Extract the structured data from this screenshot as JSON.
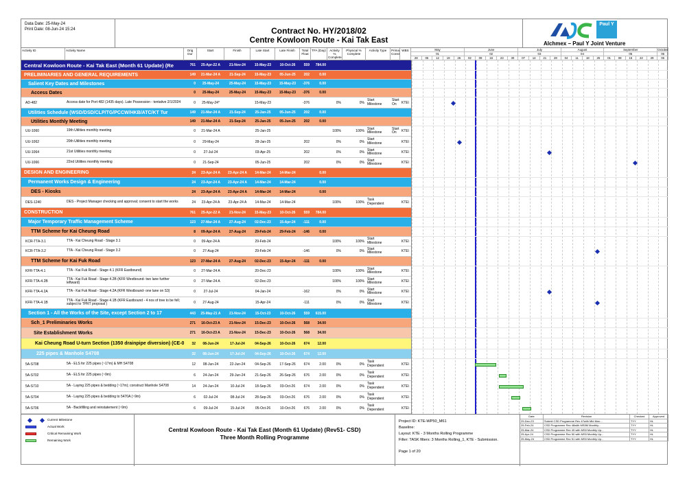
{
  "header": {
    "data_date": "Data Date: 25-May-24",
    "print_date": "Print Date: 08-Jun-24 15:24",
    "contract": "Contract No. HY/2018/02",
    "project": "Centre Kowloon Route - Kai Tak East",
    "logo_left": "AJC",
    "logo_right": "Paul Y",
    "joint_venture": "Alchmex – Paul Y Joint Venture"
  },
  "columns": [
    "Activity ID",
    "Activity Name",
    "Orig Dur",
    "Start",
    "Finish",
    "Late Start",
    "Late Finish",
    "Total Float",
    "TFA (Day)",
    "Activity % Complete",
    "Physical % Complete",
    "Activity Type",
    "Primary Constr",
    "WBS"
  ],
  "timeline": {
    "months": [
      "May",
      "June",
      "July",
      "August",
      "September",
      "October"
    ],
    "month_sub": [
      "01",
      "02",
      "03",
      "04",
      "05",
      "06"
    ],
    "days": [
      "28",
      "05",
      "12",
      "19",
      "26",
      "02",
      "09",
      "16",
      "23",
      "30",
      "07",
      "14",
      "21",
      "28",
      "04",
      "11",
      "18",
      "25",
      "01",
      "08",
      "15",
      "22",
      "29",
      "06"
    ]
  },
  "rows": [
    {
      "kind": "l1",
      "name": "Central Kowloon Route - Kai Tak East (Month 61 Update) (Re",
      "dur": "761",
      "start": "25-Apr-22 A",
      "finish": "21-Nov-24",
      "ls": "15-May-23",
      "lf": "10-Oct-26",
      "tf": "559",
      "tfa": "784.00"
    },
    {
      "kind": "l2",
      "name": "PRELIMINARIES AND GENERAL REQUIREMENTS",
      "dur": "149",
      "start": "21-Mar-24 A",
      "finish": "21-Sep-24",
      "ls": "15-May-23",
      "lf": "05-Jun-25",
      "tf": "202",
      "tfa": "0.00"
    },
    {
      "kind": "l3",
      "name": "Salient Key Dates and Milestones",
      "dur": "0",
      "start": "25-May-24",
      "finish": "25-May-24",
      "ls": "15-May-23",
      "lf": "15-May-23",
      "tf": "-376",
      "tfa": "0.00"
    },
    {
      "kind": "l4",
      "name": "Access Dates",
      "dur": "0",
      "start": "25-May-24",
      "finish": "25-May-24",
      "ls": "15-May-23",
      "lf": "15-May-23",
      "tf": "-376",
      "tfa": "0.00"
    },
    {
      "kind": "act",
      "id": "AD-482",
      "name": "Access date for Port 482 (1435 days). Late Possession - tentative 2/1/2024",
      "dur": "0",
      "start": "25-May-24*",
      "finish": "",
      "ls": "15-May-23",
      "lf": "",
      "tf": "-376",
      "tfa": "",
      "pc": "0%",
      "ph": "0%",
      "type": "Start Milestone",
      "pcon": "Start On",
      "wbs": "KTE\\"
    },
    {
      "kind": "l3",
      "name": "Utilities Schedule (WSD/DSD/CLP/TG/PCCW/HKB/ATC/KT Tur",
      "dur": "149",
      "start": "21-Mar-24 A",
      "finish": "21-Sep-24",
      "ls": "25-Jan-25",
      "lf": "05-Jun-25",
      "tf": "202",
      "tfa": "0.00"
    },
    {
      "kind": "l4",
      "name": "Utilities Monthly Meeting",
      "dur": "149",
      "start": "21-Mar-24 A",
      "finish": "21-Sep-24",
      "ls": "25-Jan-25",
      "lf": "05-Jun-25",
      "tf": "202",
      "tfa": "0.00"
    },
    {
      "kind": "act",
      "id": "UU-1060",
      "name": "19th  Utilities monthly meeting",
      "dur": "0",
      "start": "21-Mar-24 A",
      "finish": "",
      "ls": "25-Jan-25",
      "lf": "",
      "tf": "",
      "tfa": "",
      "pc": "100%",
      "ph": "100%",
      "type": "Start Milestone",
      "pcon": "Start On",
      "wbs": "KTE\\"
    },
    {
      "kind": "act",
      "id": "UU-1062",
      "name": "20th  Utilities monthly meeting",
      "dur": "0",
      "start": "29-May-24",
      "finish": "",
      "ls": "28-Jan-25",
      "lf": "",
      "tf": "202",
      "tfa": "",
      "pc": "0%",
      "ph": "0%",
      "type": "Start Milestone",
      "pcon": "",
      "wbs": "KTE\\"
    },
    {
      "kind": "act",
      "id": "UU-1064",
      "name": "21st  Utilities monthly meeting",
      "dur": "0",
      "start": "27-Jul-24",
      "finish": "",
      "ls": "03-Apr-25",
      "lf": "",
      "tf": "202",
      "tfa": "",
      "pc": "0%",
      "ph": "0%",
      "type": "Start Milestone",
      "pcon": "",
      "wbs": "KTE\\"
    },
    {
      "kind": "act",
      "id": "UU-1066",
      "name": "22nd  Utilities monthly meeting",
      "dur": "0",
      "start": "21-Sep-24",
      "finish": "",
      "ls": "05-Jun-25",
      "lf": "",
      "tf": "202",
      "tfa": "",
      "pc": "0%",
      "ph": "0%",
      "type": "Start Milestone",
      "pcon": "",
      "wbs": "KTE\\"
    },
    {
      "kind": "l2",
      "name": "DESIGN AND ENGINEERING",
      "dur": "24",
      "start": "23-Apr-24 A",
      "finish": "23-Apr-24 A",
      "ls": "14-Mar-24",
      "lf": "14-Mar-24",
      "tf": "",
      "tfa": "0.00"
    },
    {
      "kind": "l3",
      "name": "Permanent Works Design & Engineering",
      "dur": "24",
      "start": "23-Apr-24 A",
      "finish": "23-Apr-24 A",
      "ls": "14-Mar-24",
      "lf": "14-Mar-24",
      "tf": "",
      "tfa": "0.00"
    },
    {
      "kind": "l4",
      "name": "DES - Kiosks",
      "dur": "24",
      "start": "23-Apr-24 A",
      "finish": "23-Apr-24 A",
      "ls": "14-Mar-24",
      "lf": "14-Mar-24",
      "tf": "",
      "tfa": "0.00"
    },
    {
      "kind": "act",
      "id": "DES-1240",
      "name": "DES - Project Manager checking and approval; consent to start the works",
      "dur": "24",
      "start": "23-Apr-24 A",
      "finish": "23-Apr-24 A",
      "ls": "14-Mar-24",
      "lf": "14-Mar-24",
      "tf": "",
      "tfa": "",
      "pc": "100%",
      "ph": "100%",
      "type": "Task Dependent",
      "pcon": "",
      "wbs": "KTE\\"
    },
    {
      "kind": "l2",
      "name": "CONSTRUCTION",
      "dur": "761",
      "start": "25-Apr-22 A",
      "finish": "21-Nov-24",
      "ls": "15-May-23",
      "lf": "10-Oct-26",
      "tf": "559",
      "tfa": "784.00"
    },
    {
      "kind": "l3",
      "name": "Major Temporary Traffic Management Scheme",
      "dur": "123",
      "start": "27-Mar-24 A",
      "finish": "27-Aug-24",
      "ls": "02-Dec-23",
      "lf": "15-Apr-24",
      "tf": "-111",
      "tfa": "0.00"
    },
    {
      "kind": "l4",
      "name": "TTM Scheme for Kai Cheung Road",
      "dur": "8",
      "start": "09-Apr-24 A",
      "finish": "27-Aug-24",
      "ls": "29-Feb-24",
      "lf": "29-Feb-24",
      "tf": "-146",
      "tfa": "0.00"
    },
    {
      "kind": "act",
      "id": "KCR-TTA-3.1",
      "name": "TTA - Kai Cheung Road - Stage 3.1",
      "dur": "0",
      "start": "09-Apr-24 A",
      "finish": "",
      "ls": "29-Feb-24",
      "lf": "",
      "tf": "",
      "tfa": "",
      "pc": "100%",
      "ph": "100%",
      "type": "Start Milestone",
      "pcon": "",
      "wbs": "KTE\\"
    },
    {
      "kind": "act",
      "id": "KCR-TTA-3.2",
      "name": "TTA - Kai Cheung Road - Stage 3.2",
      "dur": "0",
      "start": "27-Aug-24",
      "finish": "",
      "ls": "29-Feb-24",
      "lf": "",
      "tf": "-146",
      "tfa": "",
      "pc": "0%",
      "ph": "0%",
      "type": "Start Milestone",
      "pcon": "",
      "wbs": "KTE\\"
    },
    {
      "kind": "l4",
      "name": "TTM Scheme for Kai Fuk Road",
      "dur": "123",
      "start": "27-Mar-24 A",
      "finish": "27-Aug-24",
      "ls": "02-Dec-23",
      "lf": "15-Apr-24",
      "tf": "-111",
      "tfa": "0.00"
    },
    {
      "kind": "act",
      "id": "KFR-TTA-4.1",
      "name": "TTA - Kai Fuk Road - Stage 4.1 (KFR Eastbound)",
      "dur": "0",
      "start": "27-Mar-24 A",
      "finish": "",
      "ls": "20-Dec-23",
      "lf": "",
      "tf": "",
      "tfa": "",
      "pc": "100%",
      "ph": "100%",
      "type": "Start Milestone",
      "pcon": "",
      "wbs": "KTE\\"
    },
    {
      "kind": "act",
      "id": "KFR-TTA-4.2B",
      "name": "TTA - Kai Fuk Road - Stage 4.2B (KFR Westbound- two lane further leftward)",
      "dur": "0",
      "start": "27-Mar-24 A",
      "finish": "",
      "ls": "02-Dec-23",
      "lf": "",
      "tf": "",
      "tfa": "",
      "pc": "100%",
      "ph": "100%",
      "type": "Start Milestone",
      "pcon": "",
      "wbs": "KTE\\"
    },
    {
      "kind": "act",
      "id": "KFR-TTA-4.2A",
      "name": "TTA - Kai Fuk Road - Stage 4.2A (KFR Westbound- one lane on S3)",
      "dur": "0",
      "start": "27-Jul-24",
      "finish": "",
      "ls": "04-Jan-24",
      "lf": "",
      "tf": "-162",
      "tfa": "",
      "pc": "0%",
      "ph": "0%",
      "type": "Start Milestone",
      "pcon": "",
      "wbs": "KTE\\"
    },
    {
      "kind": "act",
      "id": "KFR-TTA-4.1B",
      "name": "TTA - Kai Fuk Road - Stage 4.1B (KFR Eastbound - 4 nos of tree to be fell; subject to TPRT proposal )",
      "dur": "0",
      "start": "27-Aug-24",
      "finish": "",
      "ls": "15-Apr-24",
      "lf": "",
      "tf": "-111",
      "tfa": "",
      "pc": "0%",
      "ph": "0%",
      "type": "Start Milestone",
      "pcon": "",
      "wbs": "KTE\\"
    },
    {
      "kind": "l3",
      "name": "Section 1 - All the Works of the Site, except Section 2 to 17",
      "dur": "443",
      "start": "25-May-21 A",
      "finish": "21-Nov-24",
      "ls": "15-Oct-23",
      "lf": "10-Oct-26",
      "tf": "559",
      "tfa": "615.00"
    },
    {
      "kind": "l4",
      "name": "Sch_1 Preliminaries Works",
      "dur": "271",
      "start": "16-Oct-23 A",
      "finish": "21-Nov-24",
      "ls": "15-Dec-23",
      "lf": "10-Oct-26",
      "tf": "568",
      "tfa": "34.00"
    },
    {
      "kind": "l5",
      "name": "Site Establishment Works",
      "dur": "271",
      "start": "16-Oct-23 A",
      "finish": "21-Nov-24",
      "ls": "15-Dec-23",
      "lf": "10-Oct-26",
      "tf": "568",
      "tfa": "34.00"
    },
    {
      "kind": "l6",
      "name": "Kai Cheung Road U-turn Section (1350 drainpipe diversion) (CE-0024)",
      "dur": "32",
      "start": "08-Jun-24",
      "finish": "17-Jul-24",
      "ls": "04-Sep-26",
      "lf": "10-Oct-26",
      "tf": "674",
      "tfa": "12.00"
    },
    {
      "kind": "l7",
      "name": "225 pipes & Manhole S4708",
      "dur": "32",
      "start": "08-Jun-24",
      "finish": "17-Jul-24",
      "ls": "04-Sep-26",
      "lf": "10-Oct-26",
      "tf": "674",
      "tfa": "12.00"
    },
    {
      "kind": "act",
      "id": "5A-S708",
      "name": "5A - ELS for 225 pipes (~17m) & MH S4708",
      "dur": "12",
      "start": "08-Jun-24",
      "finish": "22-Jun-24",
      "ls": "04-Sep-26",
      "lf": "17-Sep-26",
      "tf": "674",
      "tfa": "2.00",
      "pc": "0%",
      "ph": "0%",
      "type": "Task Dependent",
      "pcon": "",
      "wbs": "KTE\\"
    },
    {
      "kind": "act",
      "id": "5A-S702",
      "name": "5A - ELS for 225 pipes (~9m)",
      "dur": "6",
      "start": "24-Jun-24",
      "finish": "29-Jun-24",
      "ls": "21-Sep-26",
      "lf": "26-Sep-26",
      "tf": "676",
      "tfa": "2.00",
      "pc": "0%",
      "ph": "0%",
      "type": "Task Dependent",
      "pcon": "",
      "wbs": "KTE\\"
    },
    {
      "kind": "act",
      "id": "5A-S710",
      "name": "5A - Laying 225 pipes & bedding (~17m); construct Manhole S4708",
      "dur": "14",
      "start": "24-Jun-24",
      "finish": "10-Jul-24",
      "ls": "18-Sep-26",
      "lf": "03-Oct-26",
      "tf": "674",
      "tfa": "2.00",
      "pc": "0%",
      "ph": "0%",
      "type": "Task Dependent",
      "pcon": "",
      "wbs": "KTE\\"
    },
    {
      "kind": "act",
      "id": "5A-S704",
      "name": "5A - Laying 225 pipes & bedding to 5470A (~9m)",
      "dur": "6",
      "start": "02-Jul-24",
      "finish": "08-Jul-24",
      "ls": "28-Sep-26",
      "lf": "03-Oct-26",
      "tf": "676",
      "tfa": "2.00",
      "pc": "0%",
      "ph": "0%",
      "type": "Task Dependent",
      "pcon": "",
      "wbs": "KTE\\"
    },
    {
      "kind": "act",
      "id": "5A-S706",
      "name": "5A - Backfilling and reinstatement (~9m)",
      "dur": "6",
      "start": "09-Jul-24",
      "finish": "15-Jul-24",
      "ls": "05-Oct-26",
      "lf": "10-Oct-26",
      "tf": "676",
      "tfa": "2.00",
      "pc": "0%",
      "ph": "0%",
      "type": "Task Dependent",
      "pcon": "",
      "wbs": "KTE\\"
    }
  ],
  "legend": [
    {
      "label": "Current Milestone",
      "sym": "diamond"
    },
    {
      "label": "Actual Work",
      "sym": "blue"
    },
    {
      "label": "Critical Remaining Work",
      "sym": "red"
    },
    {
      "label": "Remaining Work",
      "sym": "green"
    }
  ],
  "footer": {
    "title1": "Central Kowloon Route - Kai Tak East (Month 61 Update) (Rev51- CSD)",
    "title2": "Three Month Rolling Programme",
    "project_id": "Project ID: KTE-WP50_M61",
    "baseline": "Baseline:",
    "layout": "Layout: KTE - 3 Months Rolling Programme",
    "filter": "Filter: TASK filters: 3 Months Rolling_1, KTE - Submission.",
    "page": "Page 1 of 20"
  },
  "revisions": {
    "headers": [
      "Date",
      "Revision",
      "Checked",
      "Approved"
    ],
    "rows": [
      [
        "29-Dec-23",
        "Submit CSD Programme Rev 47with Mld Mon...",
        "TYY",
        "HL"
      ],
      [
        "25-Feb-24",
        "CSD Programme Rev 48with MS5M Monthly...",
        "TYY",
        "HL"
      ],
      [
        "25-Mar-24",
        "CSD Programme Rev 49 with MS5 Monthly Up...",
        "TYY",
        "HL"
      ],
      [
        "25-Apr-24",
        "CSD Programme Rev 50 with MS5 Monthly Up...",
        "TYY",
        "HL"
      ],
      [
        "25-May-24",
        "CSD Programme Rev 51 with MS5 Monthly Up...",
        "TYY",
        "HL"
      ]
    ]
  }
}
